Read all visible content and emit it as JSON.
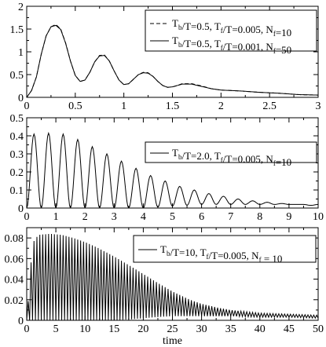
{
  "chart_data": [
    {
      "type": "line",
      "xlim": [
        0,
        3
      ],
      "ylim": [
        0,
        2
      ],
      "xticks": [
        "0",
        "0.5",
        "1",
        "1.5",
        "2",
        "2.5",
        "3"
      ],
      "yticks": [
        "0",
        "0.5",
        "1",
        "1.5",
        "2"
      ],
      "xlabel": "",
      "legend_position": "top-right",
      "grid": false,
      "series": [
        {
          "name_parts": [
            [
              "T",
              "b"
            ],
            [
              "/T=0.5, T",
              "f"
            ],
            [
              "/T=0.005, N",
              "f"
            ],
            [
              "=10",
              ""
            ]
          ],
          "style": "dashed",
          "x": [
            0,
            0.05,
            0.1,
            0.15,
            0.2,
            0.25,
            0.3,
            0.35,
            0.4,
            0.45,
            0.5,
            0.55,
            0.6,
            0.65,
            0.7,
            0.75,
            0.8,
            0.85,
            0.9,
            0.95,
            1.0,
            1.05,
            1.1,
            1.15,
            1.2,
            1.25,
            1.3,
            1.35,
            1.4,
            1.45,
            1.5,
            1.55,
            1.6,
            1.7,
            1.8,
            1.9,
            2.0,
            2.2,
            2.4,
            2.6,
            2.8,
            3.0
          ],
          "y": [
            0,
            0.15,
            0.45,
            0.95,
            1.35,
            1.55,
            1.6,
            1.5,
            1.2,
            0.8,
            0.48,
            0.35,
            0.38,
            0.55,
            0.78,
            0.92,
            0.93,
            0.8,
            0.58,
            0.38,
            0.28,
            0.3,
            0.4,
            0.5,
            0.55,
            0.54,
            0.46,
            0.35,
            0.26,
            0.22,
            0.23,
            0.26,
            0.3,
            0.3,
            0.25,
            0.19,
            0.16,
            0.14,
            0.11,
            0.09,
            0.06,
            0.05
          ]
        },
        {
          "name_parts": [
            [
              "T",
              "b"
            ],
            [
              "/T=0.5, T",
              "f"
            ],
            [
              "/T=0.001, N",
              "f"
            ],
            [
              "=50",
              ""
            ]
          ],
          "style": "solid",
          "x": [
            0,
            0.05,
            0.1,
            0.15,
            0.2,
            0.25,
            0.3,
            0.35,
            0.4,
            0.45,
            0.5,
            0.55,
            0.6,
            0.65,
            0.7,
            0.75,
            0.8,
            0.85,
            0.9,
            0.95,
            1.0,
            1.05,
            1.1,
            1.15,
            1.2,
            1.25,
            1.3,
            1.35,
            1.4,
            1.45,
            1.5,
            1.55,
            1.6,
            1.7,
            1.8,
            1.9,
            2.0,
            2.2,
            2.4,
            2.6,
            2.8,
            3.0
          ],
          "y": [
            0,
            0.15,
            0.45,
            0.95,
            1.35,
            1.55,
            1.58,
            1.49,
            1.19,
            0.8,
            0.48,
            0.35,
            0.38,
            0.55,
            0.78,
            0.91,
            0.92,
            0.8,
            0.58,
            0.38,
            0.28,
            0.3,
            0.4,
            0.5,
            0.54,
            0.53,
            0.46,
            0.35,
            0.26,
            0.22,
            0.23,
            0.26,
            0.29,
            0.29,
            0.24,
            0.19,
            0.16,
            0.14,
            0.11,
            0.09,
            0.06,
            0.05
          ]
        }
      ]
    },
    {
      "type": "line",
      "xlim": [
        0,
        10
      ],
      "ylim": [
        0,
        0.5
      ],
      "xticks": [
        "0",
        "1",
        "2",
        "3",
        "4",
        "5",
        "6",
        "7",
        "8",
        "9",
        "10"
      ],
      "yticks": [
        "0",
        "0.1",
        "0.2",
        "0.3",
        "0.4",
        "0.5"
      ],
      "xlabel": "",
      "legend_position": "top-right",
      "grid": false,
      "series": [
        {
          "name_parts": [
            [
              "T",
              "b"
            ],
            [
              "/T=2.0, T",
              "f"
            ],
            [
              "/T=0.005, N",
              "f"
            ],
            [
              "=10",
              ""
            ]
          ],
          "style": "solid",
          "period": 0.5,
          "peak_times": [
            0.25,
            0.75,
            1.25,
            1.75,
            2.25,
            2.75,
            3.25,
            3.75,
            4.25,
            4.75,
            5.25,
            5.75,
            6.25,
            6.75,
            7.25,
            7.75,
            8.25,
            8.75,
            9.25,
            9.75
          ],
          "peak_values": [
            0.41,
            0.415,
            0.41,
            0.38,
            0.34,
            0.3,
            0.26,
            0.22,
            0.18,
            0.15,
            0.12,
            0.1,
            0.08,
            0.065,
            0.05,
            0.04,
            0.032,
            0.025,
            0.02,
            0.015
          ],
          "trough_values": [
            0,
            0,
            0,
            0,
            0,
            0,
            0,
            0,
            0.005,
            0.01,
            0.015,
            0.02,
            0.02,
            0.02,
            0.02,
            0.02,
            0.02,
            0.02,
            0.02,
            0.02
          ]
        }
      ]
    },
    {
      "type": "line",
      "xlim": [
        0,
        50
      ],
      "ylim": [
        0,
        0.09
      ],
      "xticks": [
        "0",
        "5",
        "10",
        "15",
        "20",
        "25",
        "30",
        "35",
        "40",
        "45",
        "50"
      ],
      "yticks": [
        "0",
        "0.02",
        "0.04",
        "0.06",
        "0.08"
      ],
      "xlabel": "time",
      "legend_position": "top-right",
      "grid": false,
      "series": [
        {
          "name_parts": [
            [
              "T",
              "b"
            ],
            [
              "/T=10, T",
              "f"
            ],
            [
              "/T=0.005, N",
              "f"
            ],
            [
              " = 10",
              ""
            ]
          ],
          "style": "solid",
          "period": 0.5,
          "envelope_t": [
            0,
            1,
            2,
            4,
            6,
            8,
            10,
            12,
            15,
            18,
            20,
            22,
            25,
            28,
            30,
            33,
            35,
            40,
            45,
            50
          ],
          "envelope_upper": [
            0.0,
            0.075,
            0.083,
            0.084,
            0.083,
            0.08,
            0.076,
            0.071,
            0.062,
            0.052,
            0.045,
            0.038,
            0.028,
            0.02,
            0.016,
            0.012,
            0.01,
            0.007,
            0.006,
            0.005
          ],
          "envelope_lower": [
            0.0,
            0.0,
            0.0,
            0.0,
            0.0,
            0.0,
            0.0,
            0.0,
            0.0,
            0.001,
            0.002,
            0.003,
            0.004,
            0.004,
            0.004,
            0.004,
            0.004,
            0.003,
            0.003,
            0.002
          ]
        }
      ]
    }
  ]
}
